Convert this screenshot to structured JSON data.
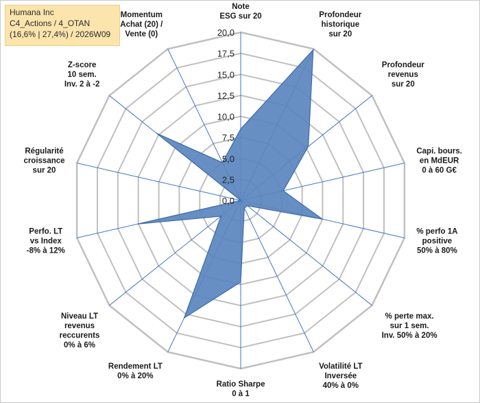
{
  "title_box": {
    "line1": "Humana Inc",
    "line2": "C4_Actions / 4_OTAN",
    "line3": "(16,6% | 27,4%) / 2026W09"
  },
  "chart_data": {
    "type": "radar",
    "title": "Humana Inc",
    "rmax": 20,
    "ticks": [
      0,
      2.5,
      5,
      7.5,
      10,
      12.5,
      15,
      17.5,
      20
    ],
    "tick_labels": [
      "0,0",
      "2,5",
      "5,0",
      "7,5",
      "10,0",
      "12,5",
      "15,0",
      "17,5",
      "20,0"
    ],
    "grid": true,
    "colors": {
      "fill": "#5a86be",
      "stroke": "#3d6aa6",
      "axis": "#4472c4",
      "grid": "#bfbfbf"
    },
    "axes": [
      {
        "label": [
          "Note",
          "ESG sur 20"
        ],
        "value": 8.5
      },
      {
        "label": [
          "Profondeur",
          "historique",
          "sur 20"
        ],
        "value": 19.9
      },
      {
        "label": [
          "Profondeur",
          "revenus",
          "sur 20"
        ],
        "value": 10.3
      },
      {
        "label": [
          "Capi. bours.",
          "en MdEUR",
          "0 à 60 G€"
        ],
        "value": 5.2
      },
      {
        "label": [
          "% perfo 1A",
          "positive",
          "50% à 80%"
        ],
        "value": 10.0
      },
      {
        "label": [
          "% perte max.",
          "sur 1 sem.",
          "Inv. 50% à 20%"
        ],
        "value": 1.0
      },
      {
        "label": [
          "Volatilité LT",
          "Inversée",
          "40% à 0%"
        ],
        "value": 1.0
      },
      {
        "label": [
          "Ratio Sharpe",
          "0 à 1"
        ],
        "value": 9.7
      },
      {
        "label": [
          "Rendement LT",
          "0% à 20%"
        ],
        "value": 15.5
      },
      {
        "label": [
          "Niveau LT",
          "revenus",
          "reccurents",
          "0% à 6%"
        ],
        "value": 3.0
      },
      {
        "label": [
          "Perfo. LT",
          "vs Index",
          "-8% à 12%"
        ],
        "value": 12.6
      },
      {
        "label": [
          "Régularité",
          "croissance",
          "sur 20"
        ],
        "value": 0.0
      },
      {
        "label": [
          "Z-score",
          "10 sem.",
          "Inv. 2 à -2"
        ],
        "value": 12.8
      },
      {
        "label": [
          "Momentum",
          "Achat (20) /",
          "Vente (0)"
        ],
        "value": 5.0
      }
    ]
  }
}
